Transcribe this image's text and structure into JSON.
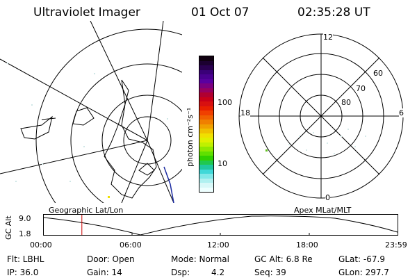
{
  "header": {
    "title": "Ultraviolet Imager",
    "date": "01 Oct 07",
    "time": "02:35:28 UT"
  },
  "colorbar": {
    "unit_label": "photon cm⁻²s⁻¹",
    "ticks": [
      "100",
      "10"
    ],
    "colors_top_to_bottom": [
      "#100010",
      "#1c0030",
      "#2a0050",
      "#3a0078",
      "#4a0090",
      "#5a00a0",
      "#7a0080",
      "#960060",
      "#b00030",
      "#c80018",
      "#d81010",
      "#e82000",
      "#f04000",
      "#f06000",
      "#f08000",
      "#f0a000",
      "#f0c000",
      "#f0e000",
      "#e0f000",
      "#c0f000",
      "#90e800",
      "#60e000",
      "#30d000",
      "#20c850",
      "#20c8a0",
      "#40d8d8",
      "#80e8e8",
      "#b0f0f0",
      "#d8f8f8",
      "#eeffff"
    ]
  },
  "polar_plot": {
    "mlt_labels": [
      "12",
      "18",
      "6",
      "0"
    ],
    "lat_labels": [
      "60",
      "70",
      "80"
    ]
  },
  "timeline": {
    "y_axis_label": "GC Alt",
    "y_ticks": [
      "9.0",
      "1.8"
    ],
    "left_title": "Geographic Lat/Lon",
    "right_title": "Apex MLat/MLT",
    "x_ticks": [
      "00:00",
      "06:00",
      "12:00",
      "18:00",
      "23:59"
    ],
    "current_time_marker": "02:35",
    "marker_color": "#cc0000"
  },
  "info": {
    "flt": "Flt: LBHL",
    "ip": "IP: 36.0",
    "door": "Door: Open",
    "gain": "Gain: 14",
    "mode": "Mode: Normal",
    "dsp_label": "Dsp:",
    "dsp_value": "4.2",
    "gcalt": "GC Alt: 6.8 Re",
    "seq": "Seq: 39",
    "glat": "GLat: -67.9",
    "glon": "GLon: 297.7"
  }
}
